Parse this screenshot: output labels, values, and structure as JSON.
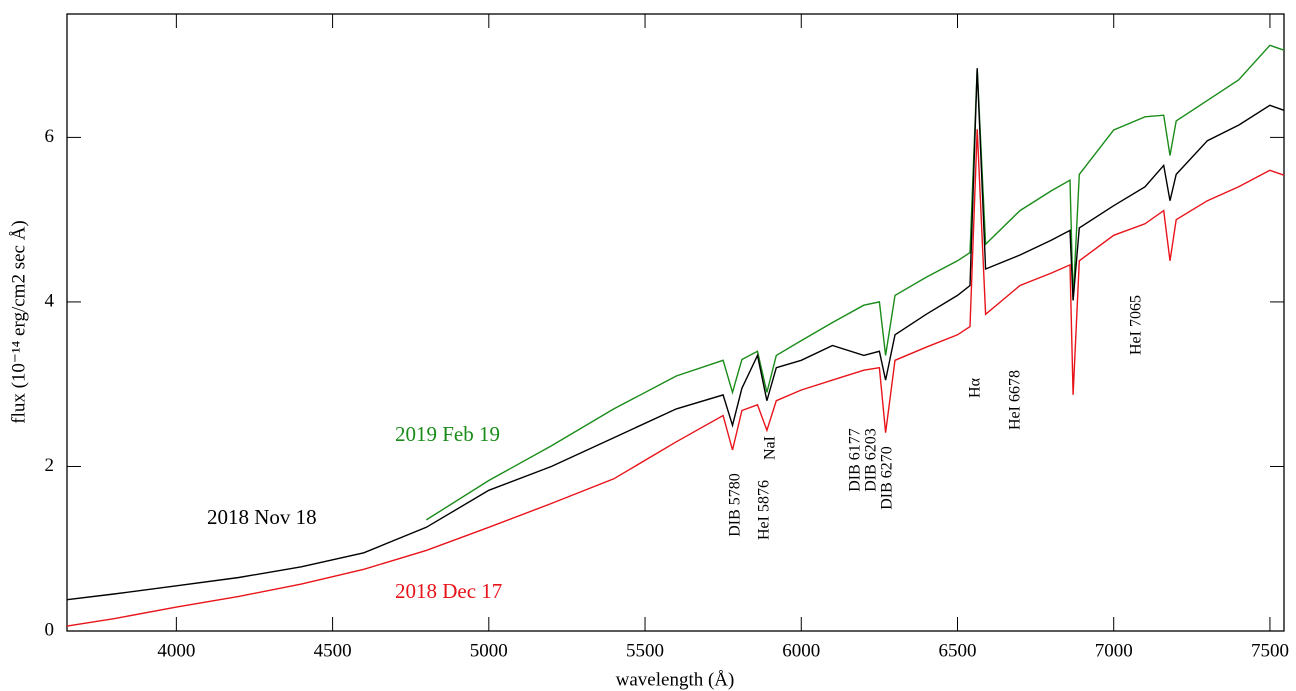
{
  "chart_data": {
    "type": "line",
    "xlabel": "wavelength (Å)",
    "ylabel": "flux (10⁻¹⁴ erg/cm2 sec Å)",
    "xlim": [
      3650,
      7545
    ],
    "ylim": [
      0,
      7.5
    ],
    "xticks": [
      4000,
      4500,
      5000,
      5500,
      6000,
      6500,
      7000,
      7500
    ],
    "yticks": [
      0,
      2,
      4,
      6
    ],
    "series": [
      {
        "name": "2019 Feb 19",
        "color": "#1a8c1a",
        "x": [
          4800,
          5000,
          5200,
          5400,
          5600,
          5750,
          5780,
          5810,
          5860,
          5890,
          5920,
          6000,
          6100,
          6200,
          6250,
          6270,
          6300,
          6400,
          6500,
          6540,
          6563,
          6590,
          6700,
          6800,
          6860,
          6870,
          6890,
          7000,
          7100,
          7160,
          7180,
          7200,
          7300,
          7400,
          7500,
          7545
        ],
        "values": [
          1.35,
          1.83,
          2.25,
          2.7,
          3.1,
          3.29,
          2.9,
          3.3,
          3.4,
          2.9,
          3.35,
          3.53,
          3.75,
          3.96,
          4.0,
          3.35,
          4.08,
          4.3,
          4.5,
          4.6,
          6.84,
          4.7,
          5.11,
          5.35,
          5.48,
          4.02,
          5.55,
          6.09,
          6.25,
          6.27,
          5.78,
          6.2,
          6.45,
          6.7,
          7.12,
          7.06
        ]
      },
      {
        "name": "2018 Nov 18",
        "color": "#000000",
        "x": [
          3650,
          3800,
          4000,
          4200,
          4400,
          4600,
          4800,
          5000,
          5200,
          5400,
          5600,
          5750,
          5780,
          5810,
          5860,
          5890,
          5920,
          6000,
          6100,
          6200,
          6250,
          6270,
          6300,
          6400,
          6500,
          6540,
          6563,
          6590,
          6700,
          6800,
          6860,
          6870,
          6890,
          7000,
          7100,
          7160,
          7180,
          7200,
          7300,
          7400,
          7500,
          7545
        ],
        "values": [
          0.38,
          0.45,
          0.55,
          0.65,
          0.78,
          0.95,
          1.26,
          1.71,
          2.0,
          2.35,
          2.7,
          2.87,
          2.5,
          2.95,
          3.35,
          2.8,
          3.2,
          3.29,
          3.47,
          3.35,
          3.4,
          3.05,
          3.6,
          3.85,
          4.08,
          4.2,
          6.84,
          4.4,
          4.57,
          4.75,
          4.87,
          4.02,
          4.9,
          5.17,
          5.4,
          5.66,
          5.23,
          5.55,
          5.96,
          6.15,
          6.39,
          6.33
        ]
      },
      {
        "name": "2018 Dec 17",
        "color": "#e8141a",
        "x": [
          3650,
          3800,
          4000,
          4200,
          4400,
          4600,
          4800,
          5000,
          5200,
          5400,
          5600,
          5750,
          5780,
          5810,
          5860,
          5890,
          5920,
          6000,
          6100,
          6200,
          6250,
          6270,
          6300,
          6400,
          6500,
          6540,
          6563,
          6590,
          6700,
          6800,
          6860,
          6870,
          6890,
          7000,
          7100,
          7160,
          7180,
          7200,
          7300,
          7400,
          7500,
          7545
        ],
        "values": [
          0.06,
          0.15,
          0.29,
          0.42,
          0.57,
          0.75,
          0.98,
          1.26,
          1.55,
          1.85,
          2.3,
          2.62,
          2.2,
          2.68,
          2.75,
          2.44,
          2.8,
          2.93,
          3.05,
          3.17,
          3.2,
          2.41,
          3.29,
          3.45,
          3.6,
          3.7,
          6.1,
          3.85,
          4.2,
          4.35,
          4.45,
          2.87,
          4.5,
          4.81,
          4.95,
          5.11,
          4.5,
          5.0,
          5.23,
          5.4,
          5.6,
          5.54
        ]
      }
    ],
    "annotations": [
      "DIB 5780",
      "HeI 5876",
      "NaI",
      "DIB 6177",
      "DIB 6203",
      "DIB 6270",
      "Hα",
      "HeI 6678",
      "HeI 7065"
    ]
  }
}
